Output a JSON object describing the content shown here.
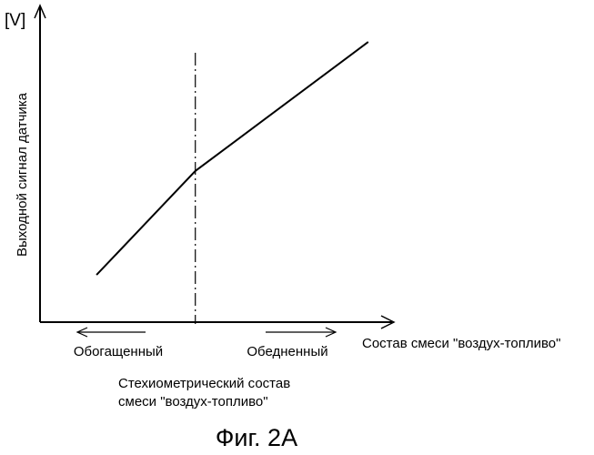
{
  "chart_data": {
    "type": "line",
    "x_range": [
      0,
      10
    ],
    "y_range": [
      0,
      10
    ],
    "series": [
      {
        "points": [
          {
            "x": 1.6,
            "y": 1.5
          },
          {
            "x": 4.4,
            "y": 4.8
          },
          {
            "x": 9.3,
            "y": 8.9
          }
        ]
      }
    ],
    "stoichiometric_x": 4.4,
    "y_unit": "[V]",
    "ylabel": "Выходной сигнал датчика",
    "xlabel": "Состав смеси \"воздух-топливо\"",
    "rich_label": "Обогащенный",
    "lean_label": "Обедненный",
    "stoich_label_line1": "Стехиометрический состав",
    "stoich_label_line2": "смеси \"воздух-топливо\"",
    "figure_caption": "Фиг. 2A",
    "colors": {
      "line": "#000000",
      "background": "#ffffff"
    }
  }
}
